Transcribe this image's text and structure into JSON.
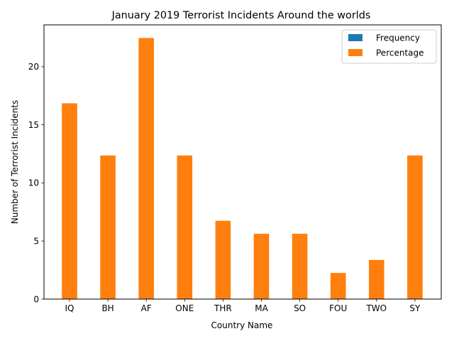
{
  "chart_data": {
    "type": "bar",
    "title": "January 2019 Terrorist Incidents Around the worlds",
    "xlabel": "Country Name",
    "ylabel": "Number of Terrorist Incidents",
    "categories": [
      "IQ",
      "BH",
      "AF",
      "ONE",
      "THR",
      "MA",
      "SO",
      "FOU",
      "TWO",
      "SY"
    ],
    "series": [
      {
        "name": "Frequency",
        "color": "#1f77b4",
        "values": [
          0,
          0,
          0,
          0,
          0,
          0,
          0,
          0,
          0,
          0
        ]
      },
      {
        "name": "Percentage",
        "color": "#ff7f0e",
        "values": [
          16.85,
          12.36,
          22.47,
          12.36,
          6.74,
          5.62,
          5.62,
          2.25,
          3.37,
          12.36
        ]
      }
    ],
    "ylim": [
      0,
      23.6
    ],
    "yticks": [
      0,
      5,
      10,
      15,
      20
    ],
    "grid": false,
    "legend_position": "top-right"
  }
}
